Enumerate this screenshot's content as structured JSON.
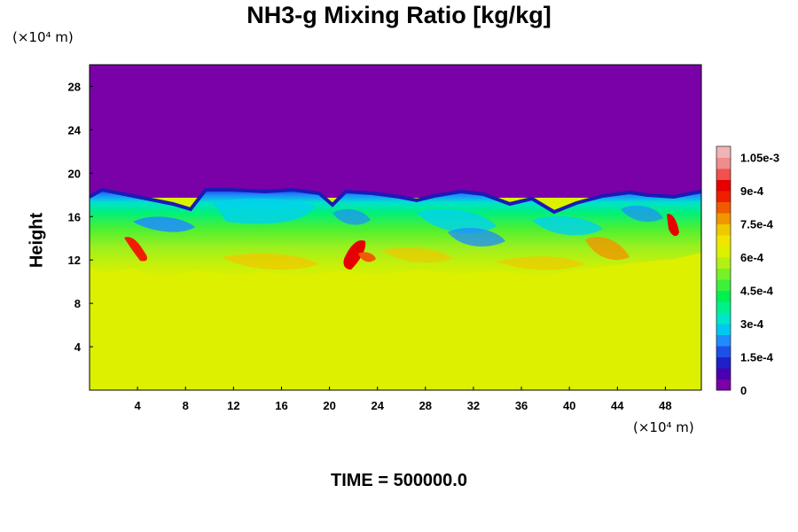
{
  "chart_data": {
    "type": "heatmap",
    "title": "NH3-g Mixing Ratio [kg/kg]",
    "ylabel": "Height",
    "xunit": "(×10⁴ m)",
    "yunit": "(×10⁴ m)",
    "xlim": [
      0,
      51
    ],
    "ylim": [
      0,
      30
    ],
    "x_ticks": [
      "4",
      "8",
      "12",
      "16",
      "20",
      "24",
      "28",
      "32",
      "36",
      "40",
      "44",
      "48"
    ],
    "y_ticks": [
      "4",
      "8",
      "12",
      "16",
      "20",
      "24",
      "28"
    ],
    "colorbar": {
      "range": [
        0,
        0.0011
      ],
      "labels": [
        "0",
        "1.5e-4",
        "3e-4",
        "4.5e-4",
        "6e-4",
        "7.5e-4",
        "9e-4",
        "1.05e-3"
      ],
      "colors": [
        "#7a00a8",
        "#4a00b0",
        "#2020c8",
        "#1e50e6",
        "#1e8cff",
        "#00c8f0",
        "#00e6c8",
        "#00f08c",
        "#00f050",
        "#3cf03c",
        "#78f028",
        "#b4f014",
        "#dcf000",
        "#f0e600",
        "#f0c800",
        "#f09600",
        "#f05a00",
        "#f01e00",
        "#e60000",
        "#f05050",
        "#f08c8c",
        "#f0b4b4"
      ]
    },
    "regions": {
      "upper_value": 0,
      "lower_value": 0.00074,
      "layer_top_height": 17.5,
      "layer_bottom_height": 11
    }
  },
  "time_label": "TIME = 500000.0"
}
